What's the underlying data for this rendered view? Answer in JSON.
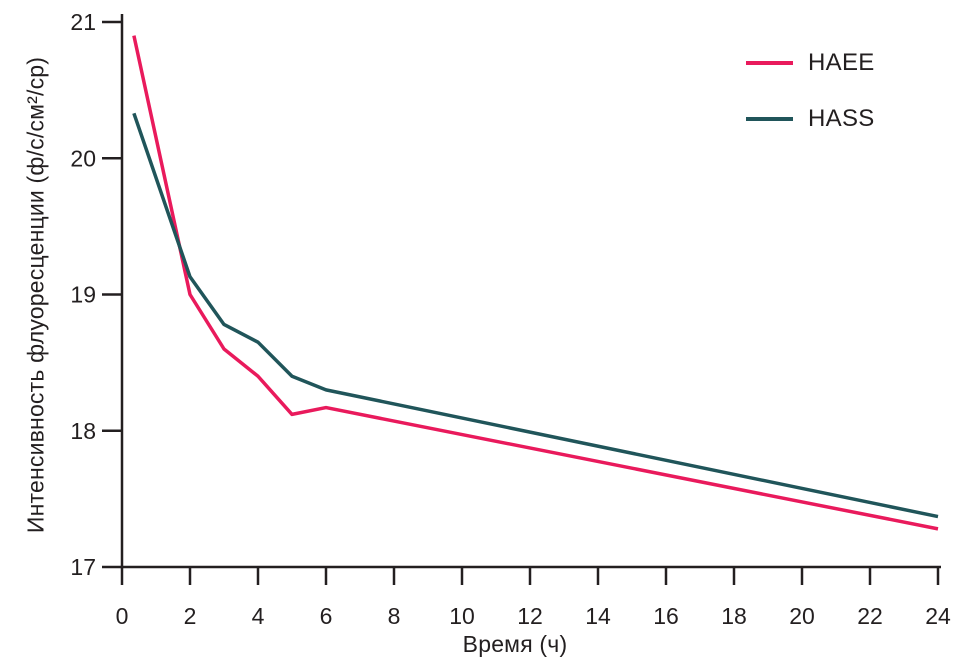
{
  "chart_data": {
    "type": "line",
    "title": "",
    "xlabel": "Время (ч)",
    "ylabel": "Интенсивность флуоресценции (ф/с/см²/ср)",
    "xlim": [
      0,
      24
    ],
    "ylim": [
      17,
      21
    ],
    "x_ticks": [
      0,
      2,
      4,
      6,
      8,
      10,
      12,
      14,
      16,
      18,
      20,
      22,
      24
    ],
    "y_ticks": [
      17,
      18,
      19,
      20,
      21
    ],
    "grid": false,
    "legend_position": "top-right-inside",
    "background_color": "#ffffff",
    "axis_color": "#231f20",
    "series": [
      {
        "name": "HAEE",
        "color": "#e91a5c",
        "x": [
          0.35,
          2,
          3,
          4,
          5,
          6,
          24
        ],
        "y": [
          20.9,
          19.0,
          18.6,
          18.4,
          18.12,
          18.17,
          17.28
        ]
      },
      {
        "name": "HASS",
        "color": "#20555a",
        "x": [
          0.35,
          2,
          3,
          4,
          5,
          6,
          24
        ],
        "y": [
          20.33,
          19.13,
          18.78,
          18.65,
          18.4,
          18.3,
          17.37
        ]
      }
    ]
  }
}
